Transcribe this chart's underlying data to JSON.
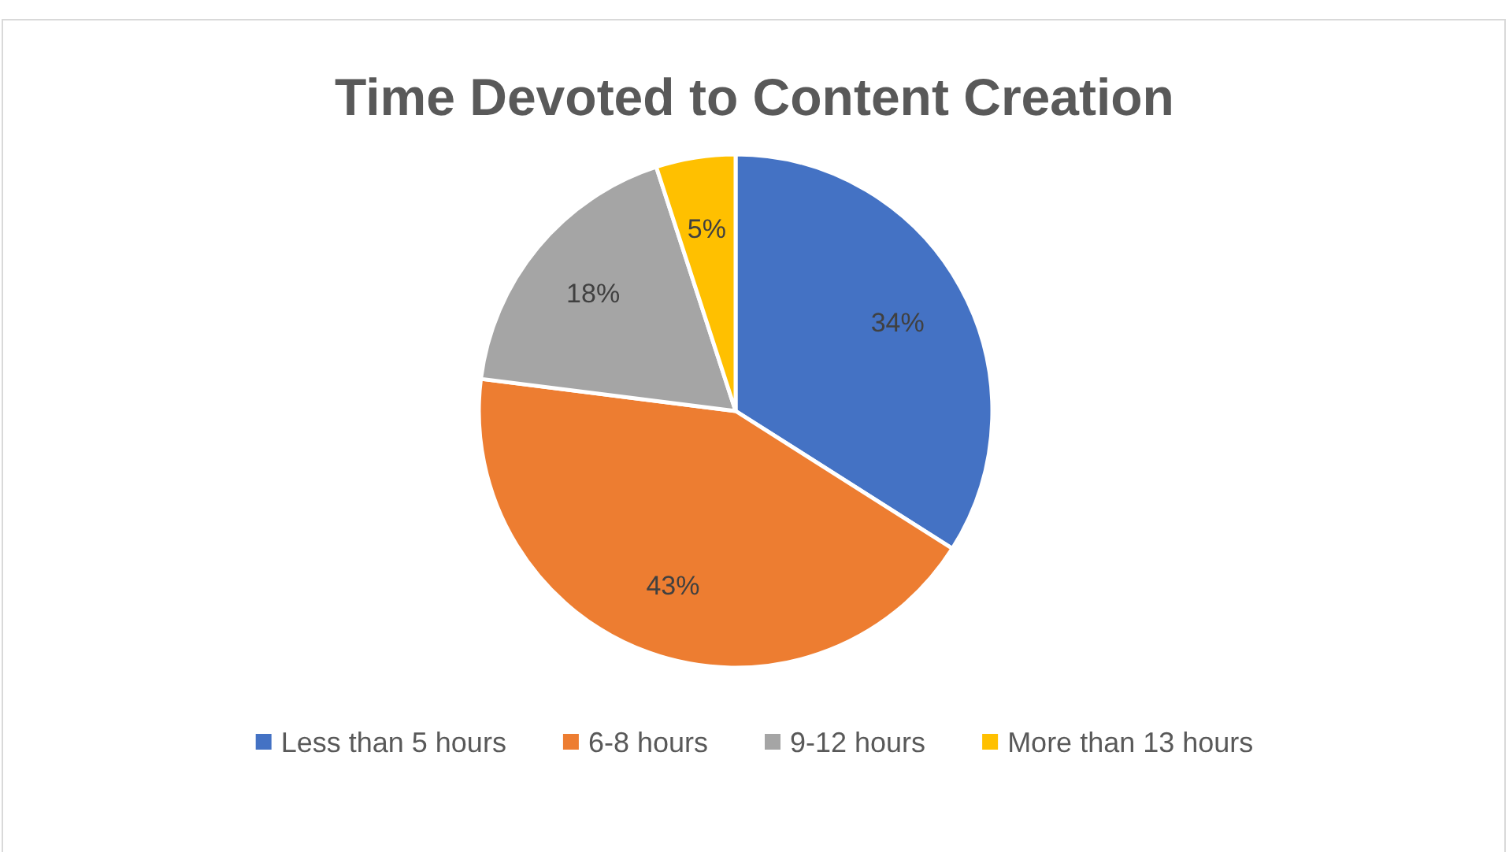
{
  "chart_data": {
    "type": "pie",
    "title": "Time Devoted to Content Creation",
    "categories": [
      "Less than 5 hours",
      "6-8 hours",
      "9-12 hours",
      "More than 13 hours"
    ],
    "values": [
      34,
      43,
      18,
      5
    ],
    "colors": [
      "#4472c4",
      "#ed7d31",
      "#a5a5a5",
      "#ffc000"
    ],
    "value_labels": [
      "34%",
      "43%",
      "18%",
      "5%"
    ],
    "legend": "bottom"
  }
}
